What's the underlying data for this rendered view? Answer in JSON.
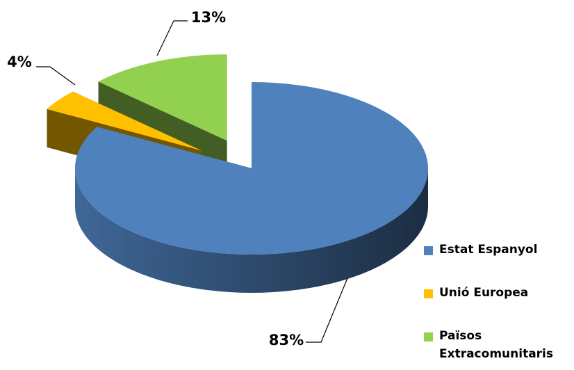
{
  "chart_data": {
    "type": "pie3d",
    "categories": [
      "Estat Espanyol",
      "Unió Europea",
      "Països Extracomunitaris"
    ],
    "values": [
      83,
      4,
      13
    ],
    "value_labels": [
      "83%",
      "4%",
      "13%"
    ],
    "colors": [
      "#4f81bd",
      "#ffc000",
      "#92d050"
    ],
    "legend": "right"
  }
}
